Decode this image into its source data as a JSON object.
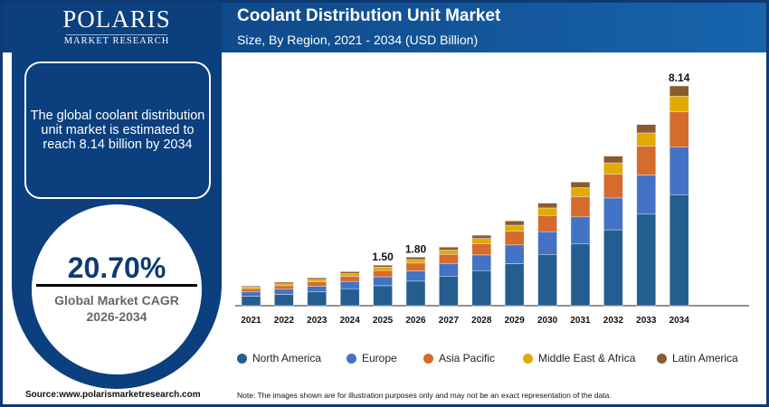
{
  "logo": {
    "name": "POLARIS",
    "sub": "MARKET RESEARCH"
  },
  "info": {
    "text": "The global coolant distribution unit market is estimated to reach 8.14 billion by 2034"
  },
  "cagr": {
    "value": "20.70%",
    "label": "Global Market CAGR",
    "period": "2026-2034"
  },
  "source": "Source:www.polarismarketresearch.com",
  "note": "Note: The images shown are for illustration purposes only and may not be an exact representation of the data.",
  "chart_data": {
    "type": "bar",
    "stacked": true,
    "title": "Coolant Distribution Unit Market",
    "subtitle": "Size, By Region, 2021 - 2034 (USD Billion)",
    "categories": [
      "2021",
      "2022",
      "2023",
      "2024",
      "2025",
      "2026",
      "2027",
      "2028",
      "2029",
      "2030",
      "2031",
      "2032",
      "2033",
      "2034"
    ],
    "series": [
      {
        "name": "North America",
        "color": "#245e90",
        "values": [
          0.35,
          0.42,
          0.51,
          0.63,
          0.74,
          0.91,
          1.08,
          1.3,
          1.56,
          1.9,
          2.3,
          2.81,
          3.39,
          4.11
        ]
      },
      {
        "name": "Europe",
        "color": "#4472c4",
        "values": [
          0.16,
          0.19,
          0.21,
          0.27,
          0.33,
          0.38,
          0.47,
          0.58,
          0.69,
          0.84,
          0.99,
          1.18,
          1.45,
          1.76
        ]
      },
      {
        "name": "Asia Pacific",
        "color": "#d56b2c",
        "values": [
          0.12,
          0.13,
          0.17,
          0.19,
          0.23,
          0.29,
          0.35,
          0.41,
          0.51,
          0.6,
          0.75,
          0.88,
          1.07,
          1.31
        ]
      },
      {
        "name": "Middle East & Africa",
        "color": "#e3aa00",
        "values": [
          0.06,
          0.07,
          0.08,
          0.1,
          0.13,
          0.13,
          0.16,
          0.2,
          0.22,
          0.28,
          0.33,
          0.42,
          0.49,
          0.58
        ]
      },
      {
        "name": "Latin America",
        "color": "#8b5a2f",
        "values": [
          0.04,
          0.06,
          0.06,
          0.07,
          0.07,
          0.09,
          0.11,
          0.12,
          0.16,
          0.18,
          0.21,
          0.25,
          0.31,
          0.38
        ]
      }
    ],
    "data_labels": {
      "2025": "1.50",
      "2026": "1.80",
      "2034": "8.14"
    },
    "ylim": [
      0,
      8.14
    ],
    "grid": false,
    "legend": "bottom"
  }
}
